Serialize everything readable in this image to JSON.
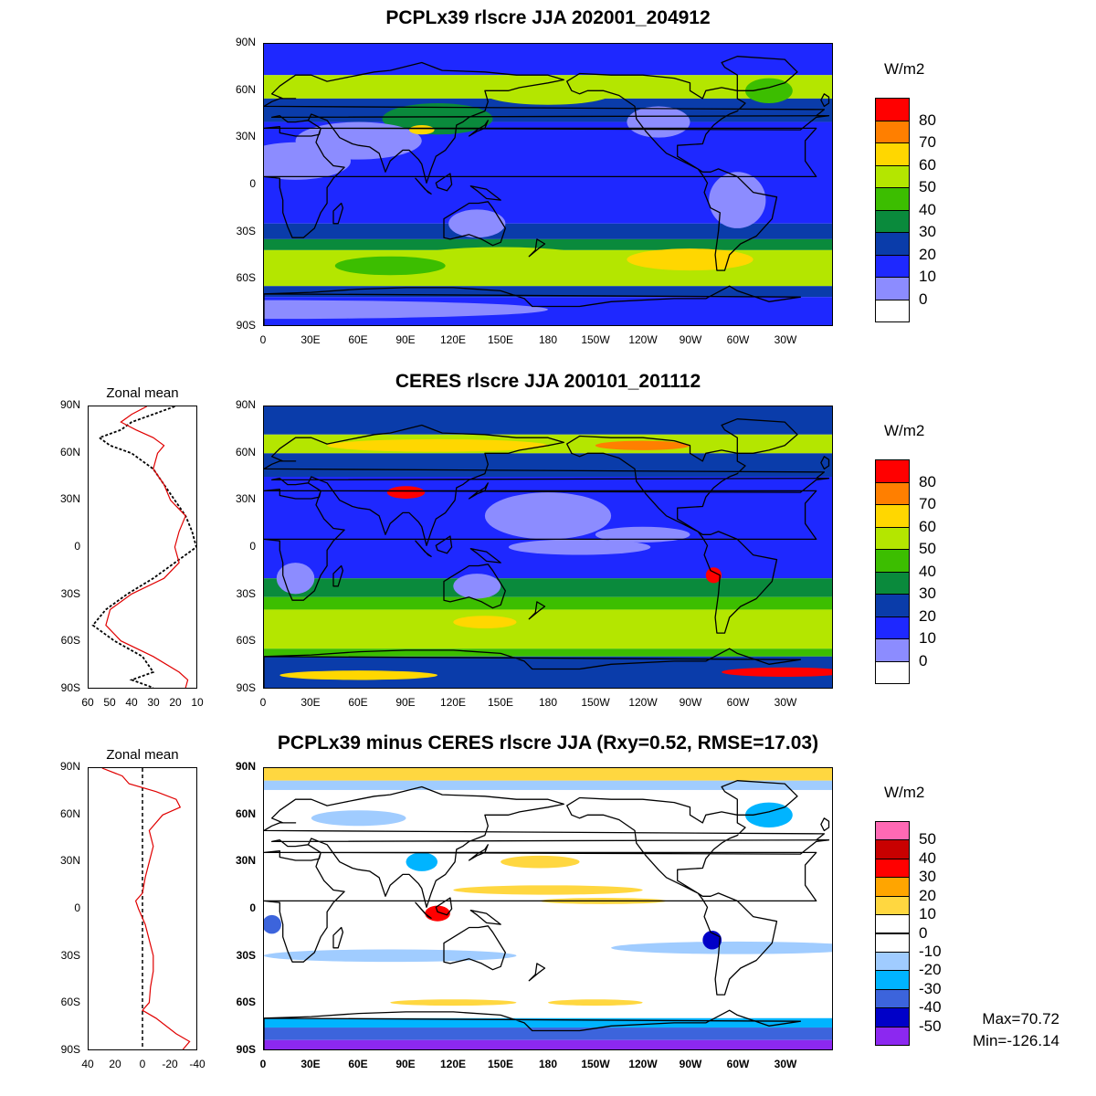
{
  "panels": [
    {
      "id": "model",
      "title": "PCPLx39 rlscre JJA 202001_204912",
      "unit": "W/m2",
      "colorbar": {
        "labels": [
          "80",
          "70",
          "60",
          "50",
          "40",
          "30",
          "20",
          "10",
          "0"
        ],
        "colors": [
          "#ff0000",
          "#ff7f00",
          "#ffd700",
          "#b4e600",
          "#3cbe00",
          "#0a8a3c",
          "#0a3caa",
          "#1e28ff",
          "#8c8cff",
          "#ffffff"
        ]
      }
    },
    {
      "id": "obs",
      "title": "CERES rlscre JJA 200101_201112",
      "unit": "W/m2",
      "colorbar": {
        "labels": [
          "80",
          "70",
          "60",
          "50",
          "40",
          "30",
          "20",
          "10",
          "0"
        ],
        "colors": [
          "#ff0000",
          "#ff7f00",
          "#ffd700",
          "#b4e600",
          "#3cbe00",
          "#0a8a3c",
          "#0a3caa",
          "#1e28ff",
          "#8c8cff",
          "#ffffff"
        ]
      },
      "zonal": {
        "title": "Zonal mean",
        "xticks": [
          "60",
          "50",
          "40",
          "30",
          "20",
          "10"
        ]
      }
    },
    {
      "id": "diff",
      "title": "PCPLx39 minus CERES rlscre JJA (Rxy=0.52, RMSE=17.03)",
      "unit": "W/m2",
      "colorbar": {
        "labels": [
          "50",
          "40",
          "30",
          "20",
          "10",
          "0",
          "-10",
          "-20",
          "-30",
          "-40",
          "-50"
        ],
        "colors": [
          "#ff69b4",
          "#c80000",
          "#ff0000",
          "#ffa500",
          "#ffd740",
          "#ffffff",
          "#ffffff",
          "#a0ccff",
          "#00b4ff",
          "#3c64dc",
          "#0000c8",
          "#8c28f0"
        ]
      },
      "zonal": {
        "title": "Zonal mean",
        "xticks": [
          "40",
          "20",
          "0",
          "-20",
          "-40"
        ]
      },
      "stats": {
        "max": "Max=70.72",
        "min": "Min=-126.14"
      }
    }
  ],
  "lat_labels": [
    "90N",
    "60N",
    "30N",
    "0",
    "30S",
    "60S",
    "90S"
  ],
  "lon_labels": [
    "0",
    "30E",
    "60E",
    "90E",
    "120E",
    "150E",
    "180",
    "150W",
    "120W",
    "90W",
    "60W",
    "30W"
  ]
}
